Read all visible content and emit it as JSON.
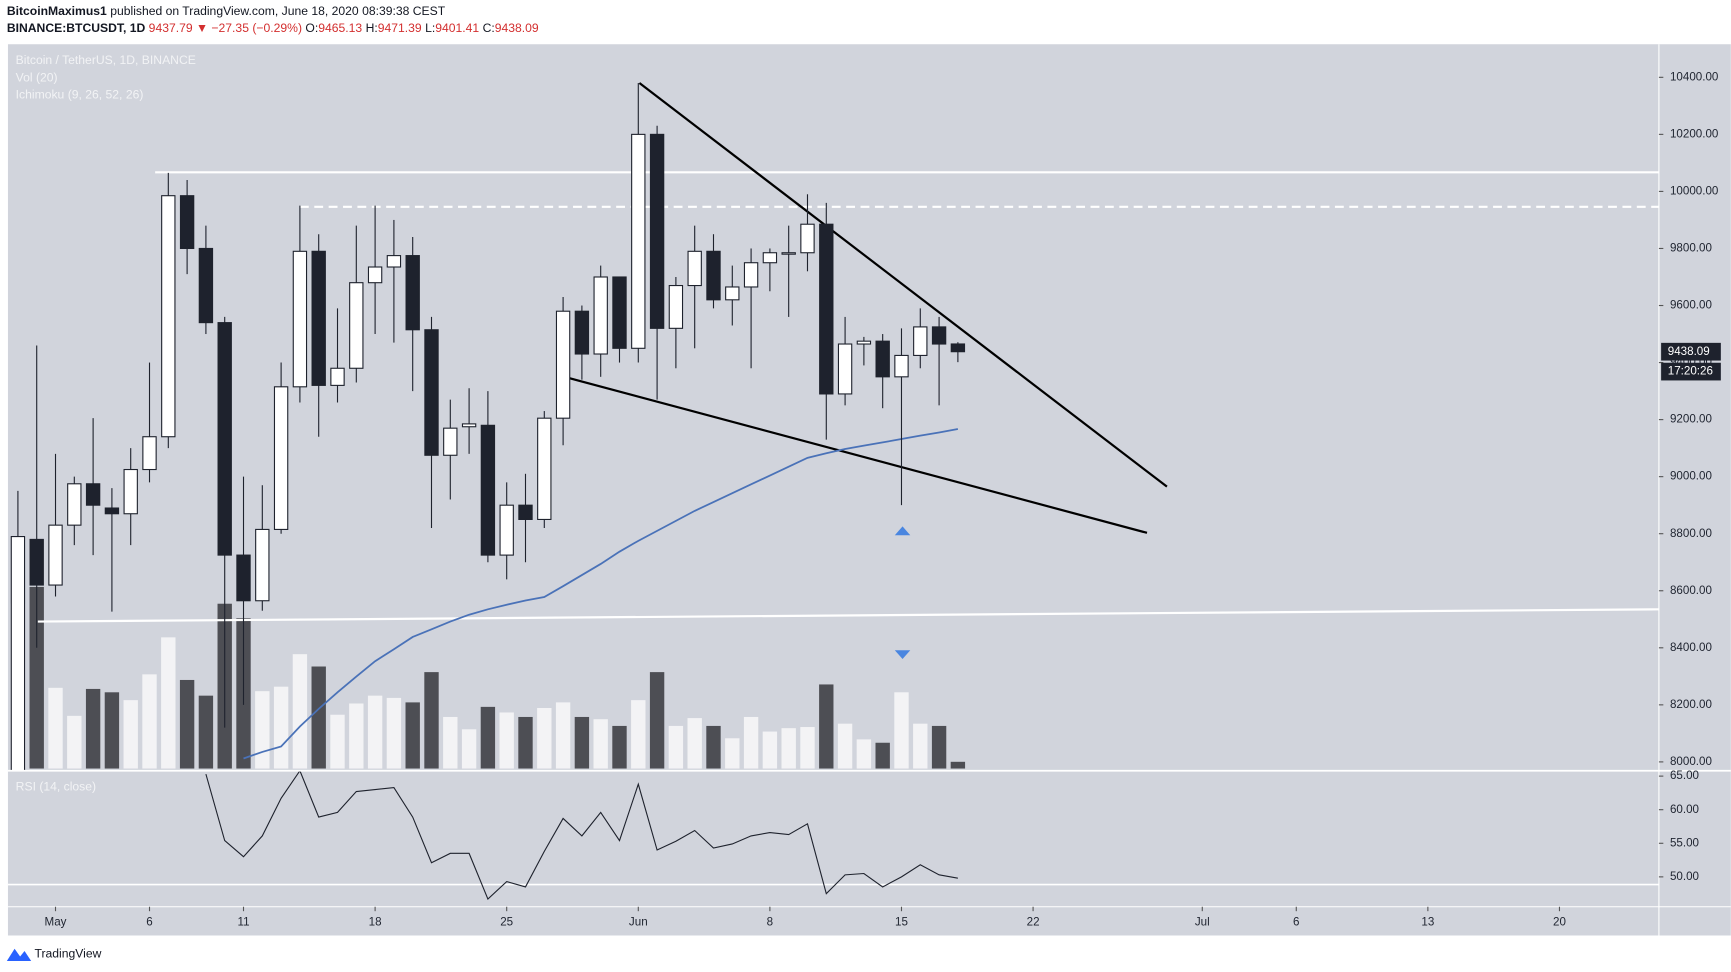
{
  "header": {
    "author": "BitcoinMaximus1",
    "published": "published on TradingView.com, June 18, 2020 08:39:38 CEST",
    "symbol": "BINANCE:BTCUSDT, 1D",
    "last": "9437.79",
    "change": "▼ −27.35 (−0.29%)",
    "ohlc": [
      {
        "k": "O:",
        "v": "9465.13"
      },
      {
        "k": "H:",
        "v": "9471.39"
      },
      {
        "k": "L:",
        "v": "9401.41"
      },
      {
        "k": "C:",
        "v": "9438.09"
      }
    ]
  },
  "footer": {
    "brand": "TradingView"
  },
  "chart_data": {
    "type": "candlestick",
    "legend": [
      "Bitcoin / TetherUS, 1D, BINANCE",
      "Vol (20)",
      "Ichimoku (9, 26, 52, 26)"
    ],
    "x": [
      0,
      1,
      2,
      3,
      4,
      5,
      6,
      7,
      8,
      9,
      10,
      11,
      12,
      13,
      14,
      15,
      16,
      17,
      18,
      19,
      20,
      21,
      22,
      23,
      24,
      25,
      26,
      27,
      28,
      29,
      30,
      31,
      32,
      33,
      34,
      35,
      36,
      37,
      38,
      39,
      40,
      41,
      42,
      43,
      44,
      45,
      46,
      47,
      48,
      49,
      50
    ],
    "open": [
      7780,
      8780,
      8620,
      8830,
      8975,
      8890,
      8870,
      9025,
      9140,
      9985,
      9800,
      9540,
      8725,
      8565,
      8815,
      9315,
      9790,
      9320,
      9380,
      9680,
      9735,
      9775,
      9515,
      9075,
      9175,
      9180,
      8725,
      8900,
      8850,
      9205,
      9580,
      9430,
      9700,
      9450,
      10200,
      9520,
      9670,
      9790,
      9620,
      9665,
      9750,
      9780,
      9785,
      9885,
      9290,
      9465,
      9475,
      9350,
      9425,
      9525,
      9465.13
    ],
    "high": [
      8950,
      9460,
      9080,
      9000,
      9205,
      8960,
      9100,
      9400,
      10065,
      10040,
      9880,
      9560,
      9000,
      8970,
      9400,
      9950,
      9850,
      9590,
      9880,
      9950,
      9900,
      9840,
      9560,
      9270,
      9310,
      9300,
      8980,
      9010,
      9230,
      9630,
      9600,
      9740,
      9700,
      10380,
      10230,
      9700,
      9880,
      9850,
      9740,
      9800,
      9800,
      9880,
      9990,
      9960,
      9560,
      9490,
      9500,
      9520,
      9590,
      9560,
      9471.39
    ],
    "low": [
      7700,
      8400,
      8580,
      8760,
      8725,
      8527,
      8760,
      8980,
      9100,
      9710,
      9500,
      8120,
      8200,
      8530,
      8800,
      9260,
      9140,
      9260,
      9330,
      9500,
      9470,
      9300,
      8820,
      8920,
      9080,
      8700,
      8640,
      8700,
      8820,
      9110,
      9340,
      9350,
      9400,
      9400,
      9270,
      9380,
      9450,
      9590,
      9530,
      9380,
      9650,
      9560,
      9720,
      9130,
      9250,
      9390,
      9240,
      8900,
      9380,
      9250,
      9401.41
    ],
    "close": [
      8790,
      8620,
      8830,
      8975,
      8900,
      8870,
      9025,
      9140,
      9985,
      9800,
      9540,
      8725,
      8565,
      8815,
      9315,
      9790,
      9320,
      9380,
      9680,
      9735,
      9775,
      9515,
      9075,
      9170,
      9185,
      8725,
      8900,
      8850,
      9205,
      9580,
      9430,
      9700,
      9450,
      10200,
      9520,
      9670,
      9790,
      9620,
      9665,
      9750,
      9785,
      9785,
      9885,
      9290,
      9465,
      9475,
      9350,
      9425,
      9525,
      9465,
      9438.09
    ],
    "volume": [
      147,
      162,
      72,
      47,
      71,
      68,
      61,
      84,
      117,
      79,
      65,
      147,
      134,
      69,
      73,
      102,
      91,
      48,
      58,
      65,
      63,
      59,
      86,
      46,
      35,
      55,
      50,
      46,
      54,
      59,
      46,
      44,
      38,
      61,
      86,
      38,
      45,
      38,
      27,
      46,
      33,
      36,
      37,
      75,
      40,
      26,
      23,
      68,
      40,
      38,
      6
    ],
    "ichimoku": {
      "color": "#4a72b8",
      "values": [
        null,
        null,
        null,
        null,
        null,
        null,
        null,
        null,
        null,
        null,
        null,
        null,
        8012,
        8035,
        8054,
        8124,
        8186,
        8244,
        8299,
        8353,
        8395,
        8438,
        8465,
        8492,
        8516,
        8535,
        8551,
        8566,
        8578,
        8616,
        8655,
        8694,
        8737,
        8775,
        8810,
        8845,
        8880,
        8911,
        8942,
        8973,
        9004,
        9035,
        9066,
        9082,
        9097,
        9109,
        9120,
        9132,
        9144,
        9155,
        9167
      ]
    },
    "colors": {
      "up": "#ffffff",
      "down": "#1e222d",
      "vol_up": "#f3f3f5",
      "vol_down": "#4d4e54",
      "panel": "#d1d4dc"
    },
    "xlim": [
      -0.53,
      87.29
    ],
    "xticks": [
      {
        "value": 2,
        "label": "May"
      },
      {
        "value": 7,
        "label": "6"
      },
      {
        "value": 12,
        "label": "11"
      },
      {
        "value": 19,
        "label": "18"
      },
      {
        "value": 26,
        "label": "25"
      },
      {
        "value": 33,
        "label": "Jun"
      },
      {
        "value": 40,
        "label": "8"
      },
      {
        "value": 47,
        "label": "15"
      },
      {
        "value": 54,
        "label": "22"
      },
      {
        "value": 63,
        "label": "Jul"
      },
      {
        "value": 68,
        "label": "6"
      },
      {
        "value": 75,
        "label": "13"
      },
      {
        "value": 82,
        "label": "20"
      }
    ],
    "ylim": [
      7969,
      10516
    ],
    "yticks": [
      {
        "value": 8000,
        "label": "8000.00"
      },
      {
        "value": 8200,
        "label": "8200.00"
      },
      {
        "value": 8400,
        "label": "8400.00"
      },
      {
        "value": 8600,
        "label": "8600.00"
      },
      {
        "value": 8800,
        "label": "8800.00"
      },
      {
        "value": 9000,
        "label": "9000.00"
      },
      {
        "value": 9200,
        "label": "9200.00"
      },
      {
        "value": 9400,
        "label": "9400.00"
      },
      {
        "value": 9600,
        "label": "9600.00"
      },
      {
        "value": 9800,
        "label": "9800.00"
      },
      {
        "value": 10000,
        "label": "10000.00"
      },
      {
        "value": 10200,
        "label": "10200.00"
      },
      {
        "value": 10400,
        "label": "10400.00"
      }
    ],
    "last_price": 9438.09,
    "countdown": "17:20:26",
    "drawings": [
      {
        "x": [
          7.3,
          87.29
        ],
        "y": [
          10067,
          10067
        ],
        "color": "#ffffff",
        "dashed": false
      },
      {
        "x": [
          15,
          87.29
        ],
        "y": [
          9946,
          9946
        ],
        "color": "#ffffff",
        "dashed": true
      },
      {
        "x": [
          1.06,
          87.29
        ],
        "y": [
          8492,
          8535
        ],
        "color": "#ffffff",
        "dashed": false
      },
      {
        "x": [
          33.06,
          61.12
        ],
        "y": [
          10380,
          8965
        ],
        "color": "#000000",
        "dashed": false
      },
      {
        "x": [
          29.12,
          60.06
        ],
        "y": [
          9349,
          8803
        ],
        "color": "#000000",
        "dashed": false
      }
    ],
    "rsi": {
      "title": "RSI (14, close)",
      "color": "#1e222d",
      "values": [
        null,
        null,
        null,
        null,
        null,
        null,
        null,
        null,
        null,
        null,
        65.3,
        55.4,
        53,
        56.1,
        61.7,
        65.8,
        58.9,
        59.6,
        62.7,
        63,
        63.3,
        58.9,
        52.1,
        53.5,
        53.5,
        46.7,
        49.3,
        48.5,
        53.8,
        58.7,
        56.1,
        59.6,
        55.4,
        63.8,
        54,
        55.3,
        56.9,
        54.3,
        54.9,
        56.1,
        56.6,
        56.3,
        57.9,
        47.5,
        50.3,
        50.5,
        48.5,
        50,
        51.8,
        50.3,
        49.8
      ],
      "ylim": [
        45.55,
        65.8
      ],
      "yticks": [
        {
          "value": 50,
          "label": "50.00"
        },
        {
          "value": 55,
          "label": "55.00"
        },
        {
          "value": 60,
          "label": "60.00"
        },
        {
          "value": 65,
          "label": "65.00"
        }
      ],
      "level": 48.85
    }
  }
}
